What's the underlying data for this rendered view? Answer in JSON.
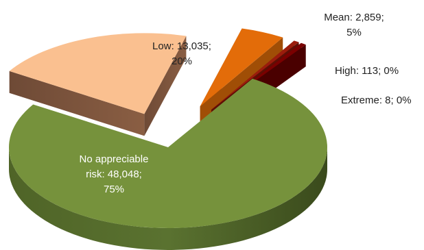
{
  "chart_data": {
    "type": "pie",
    "style": "3d-exploded",
    "slices": [
      {
        "category": "No appreciable risk",
        "value": 48048,
        "percent": 75,
        "label_lines": [
          "No appreciable",
          "risk: 48,048;",
          "75%"
        ],
        "color": "#76923c"
      },
      {
        "category": "Low",
        "value": 13035,
        "percent": 20,
        "label_lines": [
          "Low: 13,035;",
          "20%"
        ],
        "color": "#fac090"
      },
      {
        "category": "Mean",
        "value": 2859,
        "percent": 5,
        "label_lines": [
          "Mean: 2,859;",
          "5%"
        ],
        "color": "#e36c09"
      },
      {
        "category": "High",
        "value": 113,
        "percent": 0,
        "label_lines": [
          "High: 113; 0%"
        ],
        "color": "#9b1c0c"
      },
      {
        "category": "Extreme",
        "value": 8,
        "percent": 0,
        "label_lines": [
          "Extreme: 8; 0%"
        ],
        "color": "#7a0000"
      }
    ]
  }
}
